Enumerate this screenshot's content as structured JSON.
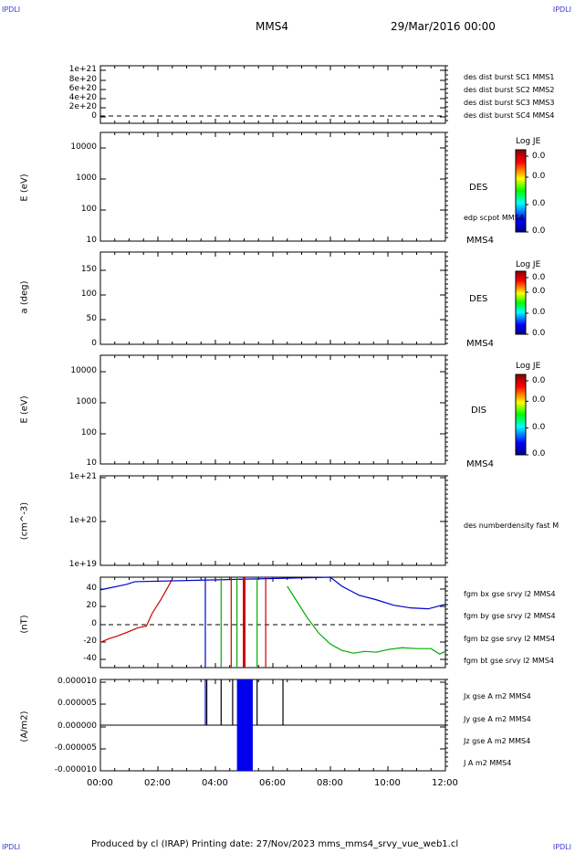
{
  "corner_tag": "IPDLI",
  "header": {
    "spacecraft": "MMS4",
    "date": "29/Mar/2016 00:00"
  },
  "footer": "Produced by cl (IRAP)   Printing date: 27/Nov/2023   mms_mms4_srvy_vue_web1.cl",
  "x_ticks": [
    "00:00",
    "02:00",
    "04:00",
    "06:00",
    "08:00",
    "10:00",
    "12:00"
  ],
  "panels": {
    "p1": {
      "y_ticks": [
        "1e+21",
        "8e+20",
        "6e+20",
        "4e+20",
        "2e+20",
        "0"
      ],
      "legend": [
        {
          "text": "des dist burst SC1 MMS1",
          "color": "#0000cc"
        },
        {
          "text": "des dist burst SC2 MMS2",
          "color": "#cc00cc"
        },
        {
          "text": "des dist burst SC3 MMS3",
          "color": "#cc0000"
        },
        {
          "text": "des dist burst SC4 MMS4",
          "color": "#00aa00"
        }
      ]
    },
    "p2": {
      "ylabel": "E (eV)",
      "y_ticks": [
        "10000",
        "1000",
        "100",
        "10"
      ],
      "label": "DES",
      "sublabel": "edp scpot MMS4",
      "sc": "MMS4"
    },
    "p3": {
      "ylabel": "a (deg)",
      "y_ticks": [
        "150",
        "100",
        "50",
        "0"
      ],
      "label": "DES",
      "sc": "MMS4"
    },
    "p4": {
      "ylabel": "E (eV)",
      "y_ticks": [
        "10000",
        "1000",
        "100",
        "10"
      ],
      "label": "DIS",
      "sc": "MMS4"
    },
    "p5": {
      "ylabel": "(cm^-3)",
      "y_ticks": [
        "1e+21",
        "1e+20",
        "1e+19"
      ],
      "legend": "des numberdensity fast M"
    },
    "p6": {
      "ylabel": "(nT)",
      "y_ticks": [
        "40",
        "20",
        "0",
        "-20",
        "-40"
      ],
      "legend": [
        {
          "text": "fgm bx gse srvy l2 MMS4",
          "color": "#cc0000"
        },
        {
          "text": "fgm by gse srvy l2 MMS4",
          "color": "#00aa00"
        },
        {
          "text": "fgm bz gse srvy l2 MMS4",
          "color": "#0000cc"
        },
        {
          "text": "fgm bt gse srvy l2 MMS4",
          "color": "#000000"
        }
      ]
    },
    "p7": {
      "ylabel": "(A/m2)",
      "y_ticks": [
        "0.000010",
        "0.000005",
        "0.000000",
        "-0.000005",
        "-0.000010"
      ],
      "legend": [
        {
          "text": "Jx gse A m2 MMS4",
          "color": "#cc0000"
        },
        {
          "text": "Jy gse A m2 MMS4",
          "color": "#00aa00"
        },
        {
          "text": "Jz gse A m2 MMS4",
          "color": "#0000cc"
        },
        {
          "text": "J A m2 MMS4",
          "color": "#000000"
        }
      ]
    }
  },
  "colorbars": [
    {
      "title": "Log JE",
      "ticks": [
        "0.0",
        "0.0",
        "0.0",
        "0.0"
      ]
    },
    {
      "title": "Log JE",
      "ticks": [
        "0.0",
        "0.0",
        "0.0",
        "0.0"
      ]
    },
    {
      "title": "Log JE",
      "ticks": [
        "0.0",
        "0.0",
        "0.0",
        "0.0"
      ]
    }
  ],
  "chart_data": {
    "type": "line",
    "x_unit": "UT hours",
    "xlim": [
      0,
      12
    ],
    "bfield": {
      "ylim": [
        -50,
        50
      ],
      "series": [
        {
          "name": "fgm bx gse srvy l2 MMS4",
          "color": "#cc0000",
          "x": [
            0.0,
            0.3,
            0.6,
            1.0,
            1.3,
            1.6,
            1.8,
            2.1,
            2.4,
            2.5
          ],
          "y": [
            -22,
            -18,
            -15,
            -10,
            -6,
            -4,
            10,
            25,
            42,
            48
          ]
        },
        {
          "name": "fgm by gse srvy l2 MMS4",
          "color": "#00aa00",
          "x": [
            6.5,
            6.8,
            7.2,
            7.6,
            8.0,
            8.4,
            8.8,
            9.2,
            9.6,
            10.0,
            10.5,
            11.0,
            11.5,
            11.8,
            12.0
          ],
          "y": [
            40,
            25,
            5,
            -12,
            -24,
            -31,
            -34,
            -32,
            -33,
            -30,
            -28,
            -29,
            -29,
            -35,
            -32
          ]
        },
        {
          "name": "fgm bz gse srvy l2 MMS4",
          "color": "#0000cc",
          "x": [
            0.0,
            0.3,
            0.6,
            0.9,
            1.2,
            8.0,
            8.4,
            9.0,
            9.6,
            10.2,
            10.8,
            11.4,
            12.0
          ],
          "y": [
            36,
            38,
            40,
            42,
            45,
            50,
            40,
            30,
            25,
            19,
            16,
            15,
            20
          ]
        }
      ]
    },
    "current": {
      "ylim": [
        -1e-05,
        1e-05
      ],
      "series": [
        {
          "name": "Jx gse A m2 MMS4",
          "color": "#cc0000",
          "x": [
            0,
            12
          ],
          "y": [
            0,
            0
          ]
        },
        {
          "name": "Jy gse A m2 MMS4",
          "color": "#00aa00",
          "x": [
            0,
            12
          ],
          "y": [
            0,
            0
          ]
        },
        {
          "name": "Jz gse A m2 MMS4",
          "color": "#0000cc",
          "x": [
            0,
            12
          ],
          "y": [
            0,
            0
          ]
        },
        {
          "name": "J A m2 MMS4",
          "color": "#000000",
          "x": [
            0,
            12
          ],
          "y": [
            0,
            0
          ]
        }
      ]
    }
  }
}
